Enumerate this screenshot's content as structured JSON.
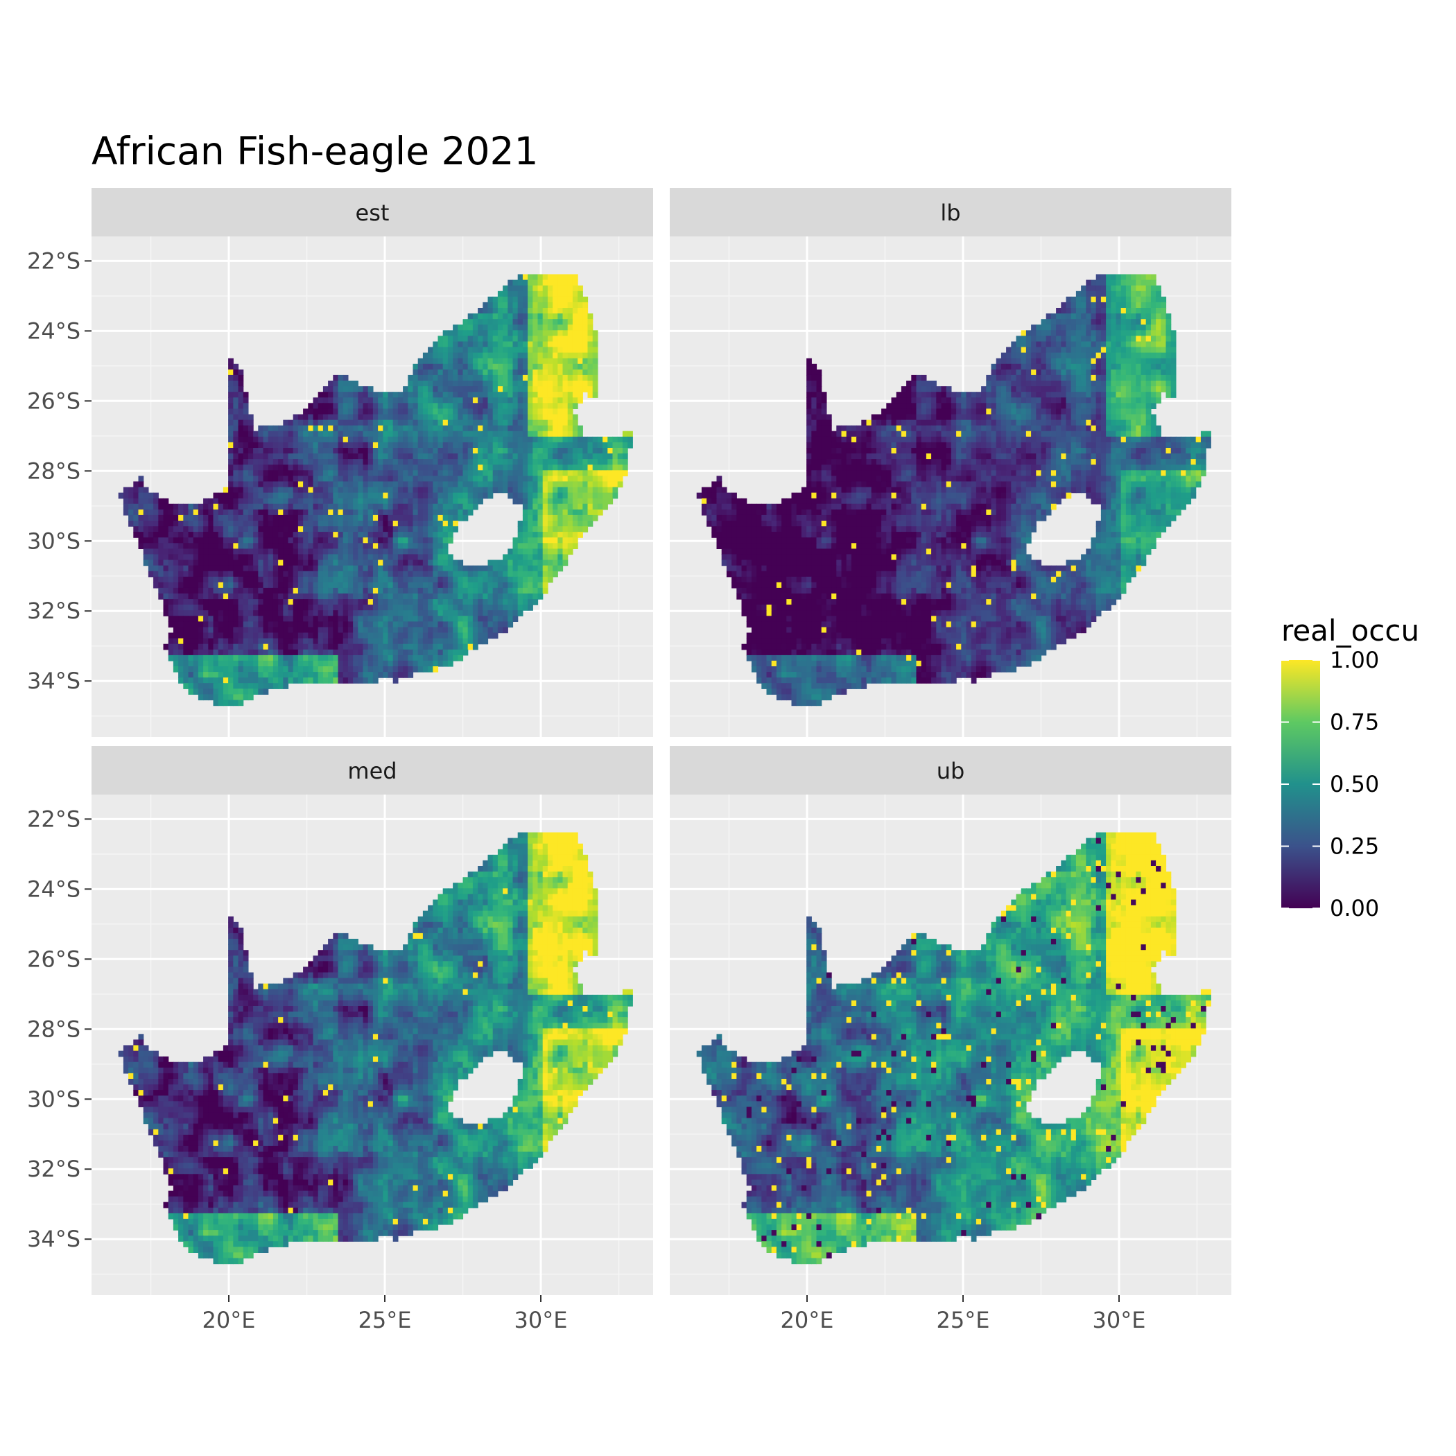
{
  "title": "African Fish-eagle 2021",
  "chart_data": {
    "type": "heatmap",
    "title": "African Fish-eagle 2021",
    "facets": [
      "est",
      "lb",
      "med",
      "ub"
    ],
    "x_ticks": [
      "20°E",
      "25°E",
      "30°E"
    ],
    "y_ticks": [
      "22°S",
      "24°S",
      "26°S",
      "28°S",
      "30°S",
      "32°S",
      "34°S"
    ],
    "x_tick_values": [
      20,
      25,
      30
    ],
    "y_tick_values": [
      -22,
      -24,
      -26,
      -28,
      -30,
      -32,
      -34
    ],
    "xlim": [
      15.6,
      33.6
    ],
    "ylim": [
      -35.6,
      -21.3
    ],
    "legend": {
      "title": "real_occu",
      "ticks": [
        "1.00",
        "0.75",
        "0.50",
        "0.25",
        "0.00"
      ],
      "tick_values": [
        1.0,
        0.75,
        0.5,
        0.25,
        0.0
      ],
      "range": [
        0,
        1
      ],
      "colormap": "viridis",
      "placement": "right"
    },
    "grid": true,
    "panel_background": "#EBEBEB",
    "strip_background": "#D9D9D9",
    "colors": [
      "#440154",
      "#3b528b",
      "#21918c",
      "#5ec962",
      "#fde725"
    ]
  }
}
